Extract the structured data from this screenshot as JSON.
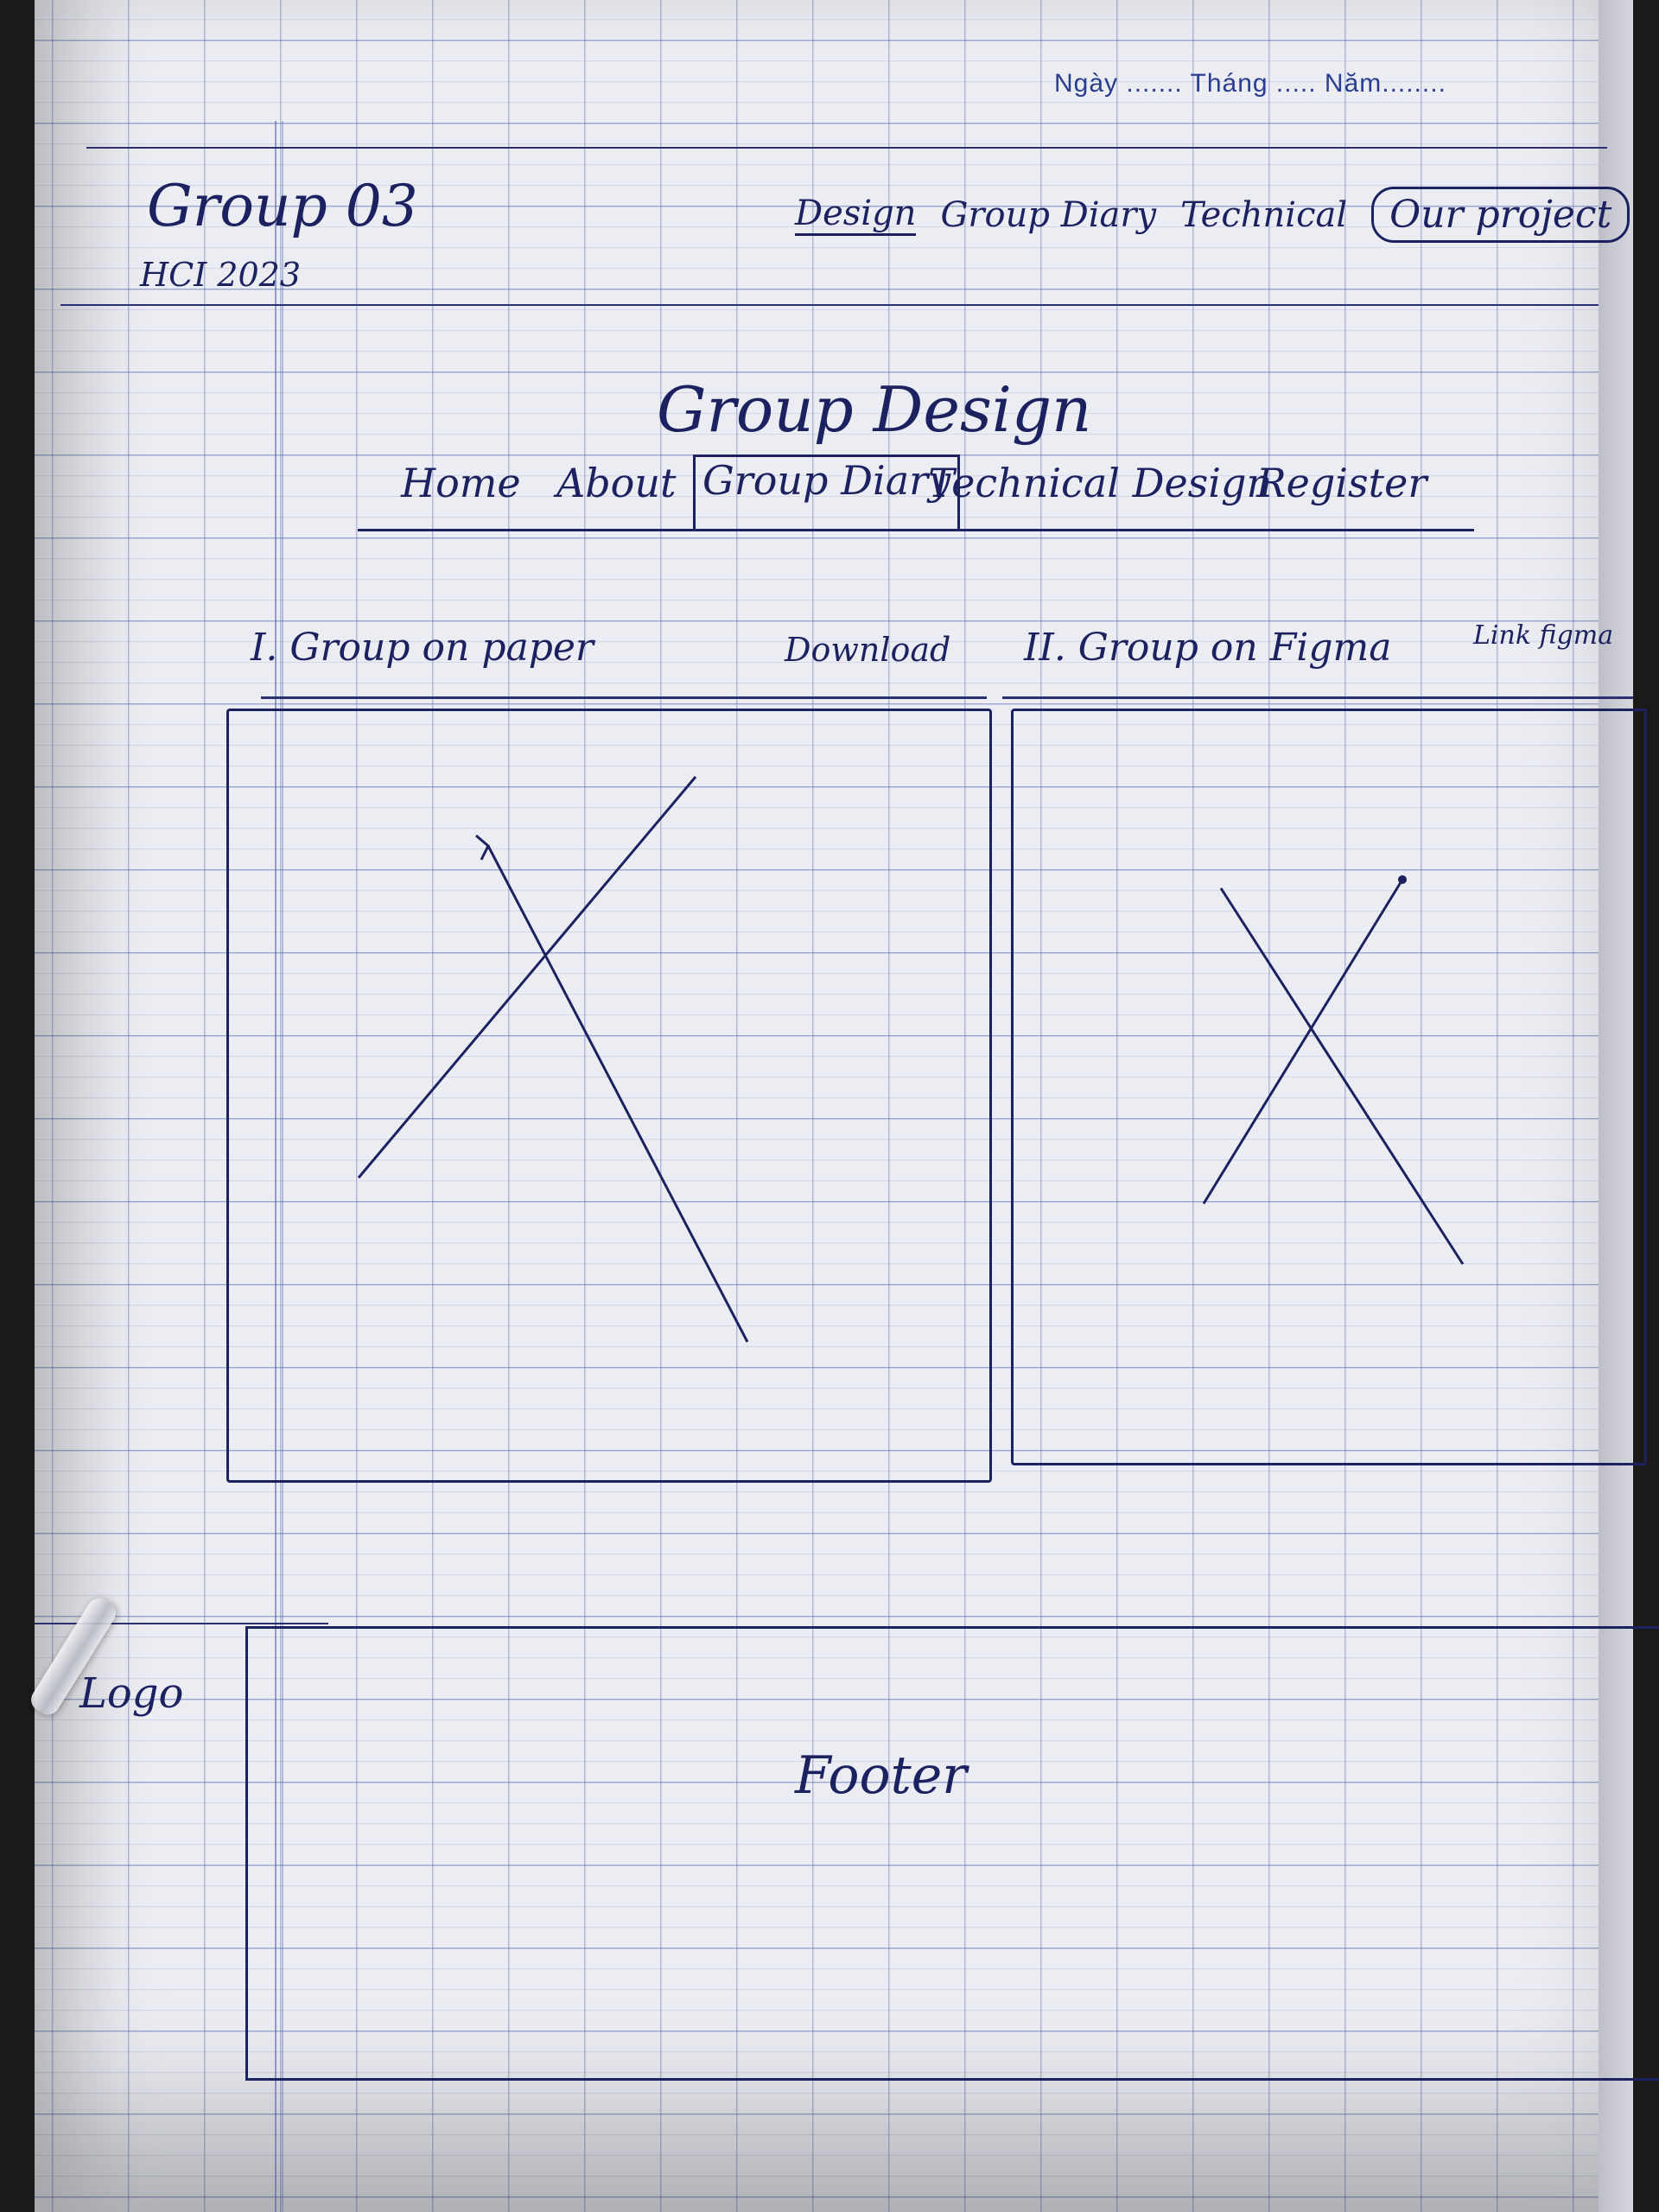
{
  "header": {
    "date_line": "Ngày ....... Tháng ..... Năm........",
    "brand_title": "Group 03",
    "brand_sub": "HCI 2023",
    "nav": [
      {
        "label": "Design"
      },
      {
        "label": "Group Diary"
      },
      {
        "label": "Technical"
      },
      {
        "label": "Our project"
      }
    ]
  },
  "main": {
    "page_title": "Group Design",
    "tabs": [
      {
        "label": "Home"
      },
      {
        "label": "About"
      },
      {
        "label": "Group Diary"
      },
      {
        "label": "Technical Design"
      },
      {
        "label": "Register"
      }
    ],
    "section1": {
      "title": "I. Group on paper",
      "action": "Download"
    },
    "section2": {
      "title": "II. Group on Figma",
      "action": "Link figma"
    }
  },
  "footer": {
    "logo": "Logo",
    "label": "Footer"
  }
}
